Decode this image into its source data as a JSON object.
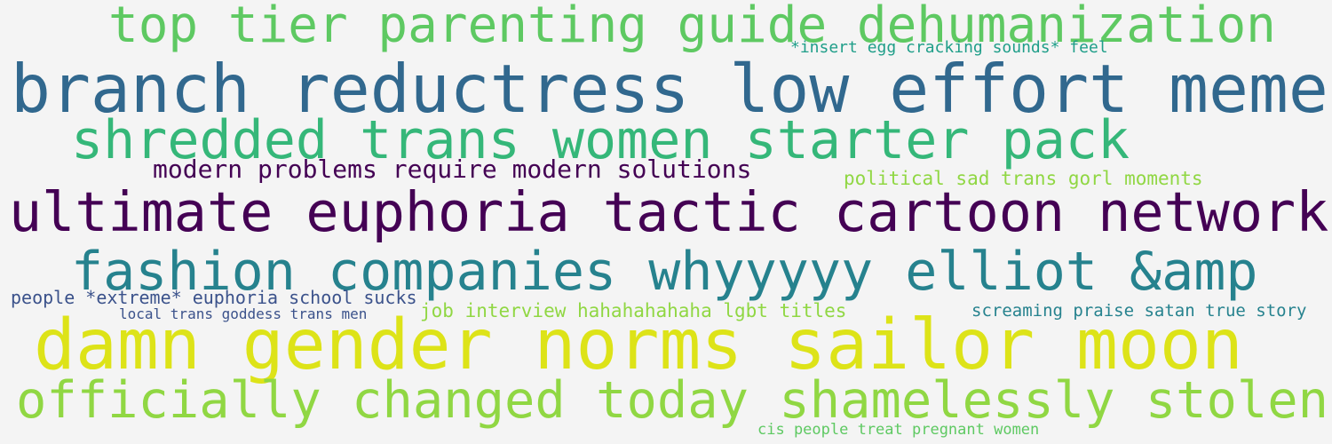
{
  "colors": {
    "background": "#f4f4f4",
    "light_green": "#5ec962",
    "teal_green": "#35b779",
    "yellow_green": "#90d743",
    "bright_yellow": "#dde318",
    "steel_blue": "#31688e",
    "teal": "#21918c",
    "dark_purple": "#440154",
    "slate_blue": "#3b528b",
    "sea_green": "#1f9e89",
    "teal_blue": "#26828e"
  },
  "words": {
    "w1": "top tier parenting guide dehumanization",
    "w2": "*insert egg cracking sounds* feel",
    "w3": "branch reductress low effort meme",
    "w4": "shredded trans women starter pack",
    "w5": "modern problems require modern solutions",
    "w6": "political sad trans gorl moments",
    "w7": "ultimate euphoria tactic cartoon network",
    "w8": "fashion companies whyyyyy elliot &amp",
    "w9": "people *extreme* euphoria school sucks",
    "w10": "local trans goddess trans men",
    "w11": "job interview hahahahahaha lgbt titles",
    "w12": "screaming praise satan true story",
    "w13": "damn gender norms sailor moon",
    "w14": "officially changed today shamelessly stolen",
    "w15": "cis people treat pregnant women"
  }
}
